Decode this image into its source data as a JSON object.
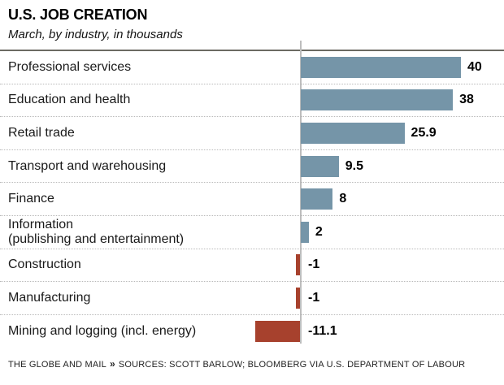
{
  "header": {
    "title": "U.S. JOB CREATION",
    "subtitle": "March, by industry, in thousands"
  },
  "chart_data": {
    "type": "bar",
    "orientation": "horizontal",
    "title": "U.S. JOB CREATION",
    "subtitle": "March, by industry, in thousands",
    "unit": "thousands",
    "categories": [
      "Professional services",
      "Education and health",
      "Retail trade",
      "Transport and warehousing",
      "Finance",
      "Information\n(publishing and entertainment)",
      "Construction",
      "Manufacturing",
      "Mining and logging (incl. energy)"
    ],
    "values": [
      40,
      38,
      25.9,
      9.5,
      8,
      2,
      -1,
      -1,
      -11.1
    ],
    "value_labels": [
      "40",
      "38",
      "25.9",
      "9.5",
      "8",
      "2",
      "-1",
      "-1",
      "-11.1"
    ],
    "xlim": [
      -15,
      45
    ],
    "grid": "dotted-row-separators",
    "legend": "none",
    "zero_baseline": true,
    "positive_color": "#7595a8",
    "negative_color": "#a7412d"
  },
  "footer": {
    "brand": "THE GLOBE AND MAIL",
    "separator": "»",
    "sources": "SOURCES: SCOTT BARLOW; BLOOMBERG VIA U.S. DEPARTMENT OF LABOUR"
  }
}
